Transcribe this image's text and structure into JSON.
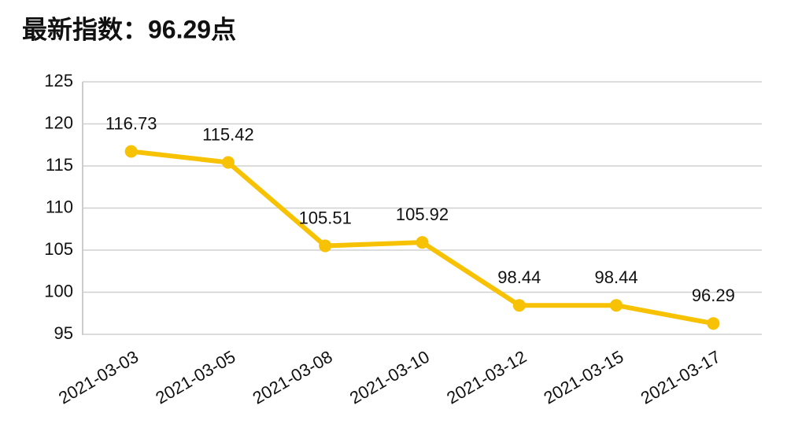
{
  "chart_data": {
    "type": "line",
    "title": "最新指数：96.29点",
    "categories": [
      "2021-03-03",
      "2021-03-05",
      "2021-03-08",
      "2021-03-10",
      "2021-03-12",
      "2021-03-15",
      "2021-03-17"
    ],
    "values": [
      116.73,
      115.42,
      105.51,
      105.92,
      98.44,
      98.44,
      96.29
    ],
    "color": "#f7c204",
    "ylim": [
      95,
      125
    ],
    "yticks": [
      95,
      100,
      105,
      110,
      115,
      120,
      125
    ],
    "grid": true
  }
}
